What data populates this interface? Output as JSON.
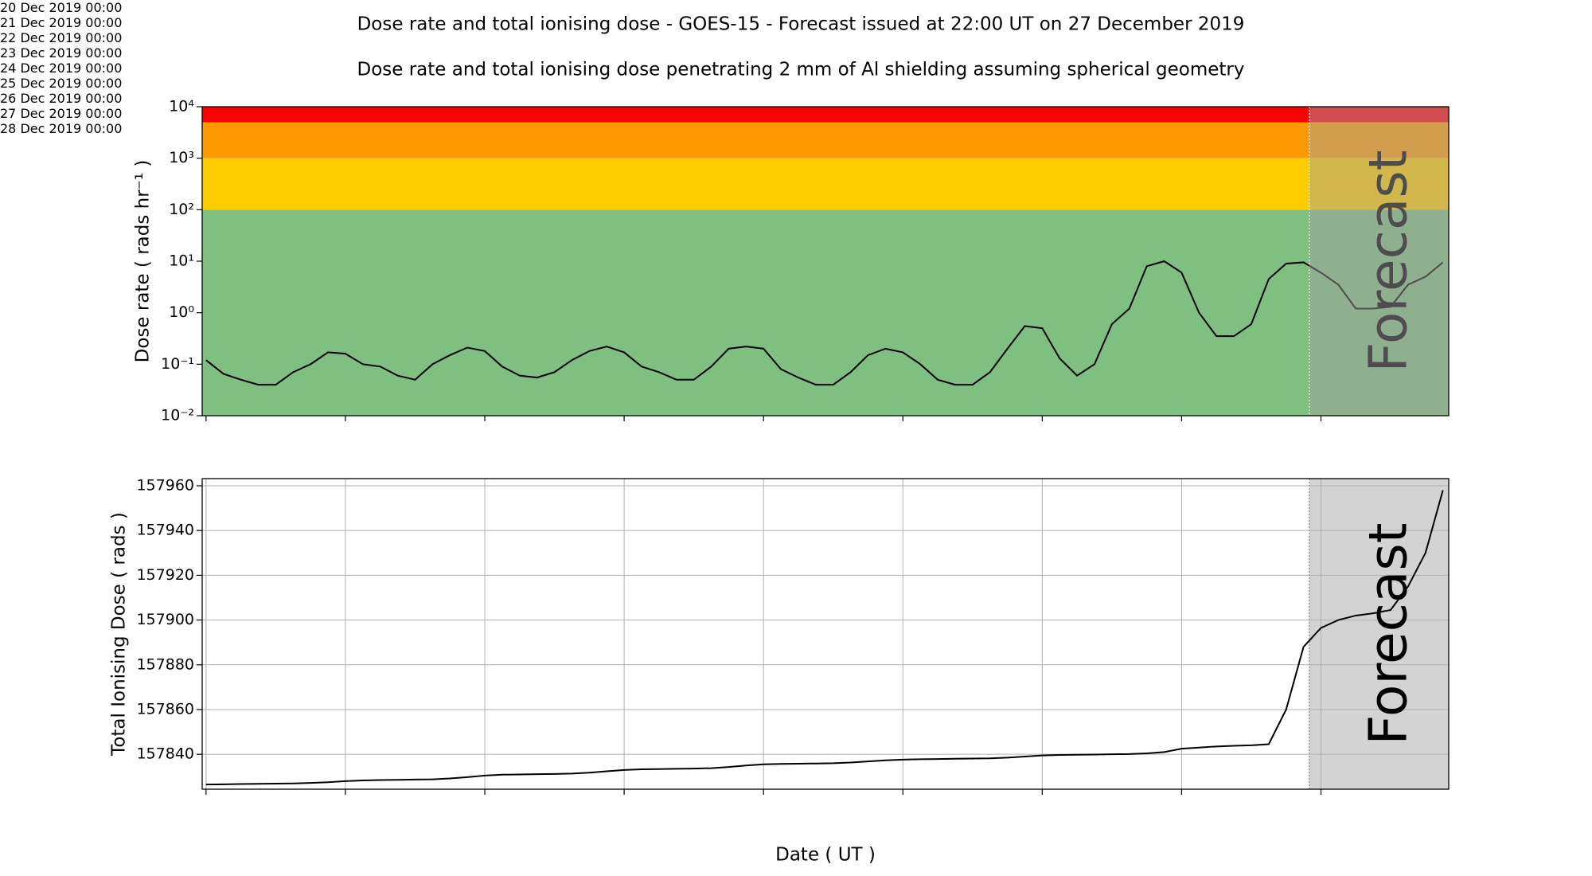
{
  "chart_data": [
    {
      "type": "line",
      "title": "Dose rate and total ionising dose - GOES-15 - Forecast issued at 22:00 UT on 27 December 2019",
      "subtitle": "Dose rate and total ionising dose penetrating 2 mm of Al shielding assuming spherical geometry",
      "ylabel": "Dose rate ( rads hr⁻¹ )",
      "yscale": "log",
      "xlim": [
        "2019-12-19T23:20",
        "2019-12-28T22:00"
      ],
      "xticks": [
        "2019-12-20T00:00",
        "2019-12-21T00:00",
        "2019-12-22T00:00",
        "2019-12-23T00:00",
        "2019-12-24T00:00",
        "2019-12-25T00:00",
        "2019-12-26T00:00",
        "2019-12-27T00:00",
        "2019-12-28T00:00"
      ],
      "ylim": [
        0.01,
        10000
      ],
      "yticks": [
        {
          "value": 0.01,
          "label": "10⁻²"
        },
        {
          "value": 0.1,
          "label": "10⁻¹"
        },
        {
          "value": 1,
          "label": "10⁰"
        },
        {
          "value": 10,
          "label": "10¹"
        },
        {
          "value": 100,
          "label": "10²"
        },
        {
          "value": 1000,
          "label": "10³"
        },
        {
          "value": 10000,
          "label": "10⁴"
        }
      ],
      "grid": false,
      "bands": [
        {
          "from": 0.01,
          "to": 100,
          "color": "#7fbf7f"
        },
        {
          "from": 100,
          "to": 1000,
          "color": "#ffcc00"
        },
        {
          "from": 1000,
          "to": 5000,
          "color": "#ff9900"
        },
        {
          "from": 5000,
          "to": 10000,
          "color": "#ff0000"
        }
      ],
      "forecast": {
        "start": "2019-12-27T22:00",
        "label": "Forecast",
        "color": "rgba(160,160,160,0.48)",
        "line_color": "#ffffff"
      },
      "color": "#000000",
      "x": [
        "2019-12-20T00:00",
        "2019-12-20T03:00",
        "2019-12-20T06:00",
        "2019-12-20T09:00",
        "2019-12-20T12:00",
        "2019-12-20T15:00",
        "2019-12-20T18:00",
        "2019-12-20T21:00",
        "2019-12-21T00:00",
        "2019-12-21T03:00",
        "2019-12-21T06:00",
        "2019-12-21T09:00",
        "2019-12-21T12:00",
        "2019-12-21T15:00",
        "2019-12-21T18:00",
        "2019-12-21T21:00",
        "2019-12-22T00:00",
        "2019-12-22T03:00",
        "2019-12-22T06:00",
        "2019-12-22T09:00",
        "2019-12-22T12:00",
        "2019-12-22T15:00",
        "2019-12-22T18:00",
        "2019-12-22T21:00",
        "2019-12-23T00:00",
        "2019-12-23T03:00",
        "2019-12-23T06:00",
        "2019-12-23T09:00",
        "2019-12-23T12:00",
        "2019-12-23T15:00",
        "2019-12-23T18:00",
        "2019-12-23T21:00",
        "2019-12-24T00:00",
        "2019-12-24T03:00",
        "2019-12-24T06:00",
        "2019-12-24T09:00",
        "2019-12-24T12:00",
        "2019-12-24T15:00",
        "2019-12-24T18:00",
        "2019-12-24T21:00",
        "2019-12-25T00:00",
        "2019-12-25T03:00",
        "2019-12-25T06:00",
        "2019-12-25T09:00",
        "2019-12-25T12:00",
        "2019-12-25T15:00",
        "2019-12-25T18:00",
        "2019-12-25T21:00",
        "2019-12-26T00:00",
        "2019-12-26T03:00",
        "2019-12-26T06:00",
        "2019-12-26T09:00",
        "2019-12-26T12:00",
        "2019-12-26T15:00",
        "2019-12-26T18:00",
        "2019-12-26T21:00",
        "2019-12-27T00:00",
        "2019-12-27T03:00",
        "2019-12-27T06:00",
        "2019-12-27T09:00",
        "2019-12-27T12:00",
        "2019-12-27T15:00",
        "2019-12-27T18:00",
        "2019-12-27T21:00",
        "2019-12-28T00:00",
        "2019-12-28T03:00",
        "2019-12-28T06:00",
        "2019-12-28T09:00",
        "2019-12-28T12:00",
        "2019-12-28T15:00",
        "2019-12-28T18:00",
        "2019-12-28T21:00"
      ],
      "values": [
        0.12,
        0.065,
        0.05,
        0.04,
        0.04,
        0.07,
        0.1,
        0.17,
        0.16,
        0.1,
        0.09,
        0.06,
        0.05,
        0.1,
        0.15,
        0.21,
        0.18,
        0.09,
        0.06,
        0.055,
        0.07,
        0.12,
        0.18,
        0.22,
        0.17,
        0.09,
        0.07,
        0.05,
        0.05,
        0.09,
        0.2,
        0.22,
        0.2,
        0.08,
        0.055,
        0.04,
        0.04,
        0.07,
        0.15,
        0.2,
        0.17,
        0.1,
        0.05,
        0.04,
        0.04,
        0.07,
        0.2,
        0.55,
        0.5,
        0.13,
        0.06,
        0.1,
        0.6,
        1.2,
        8,
        10,
        6,
        1.0,
        0.35,
        0.35,
        0.6,
        4.5,
        9,
        9.5,
        6,
        3.5,
        1.2,
        1.2,
        1.3,
        3.5,
        5,
        9.5
      ]
    },
    {
      "type": "line",
      "ylabel": "Total Ionising Dose ( rads )",
      "xlabel": "Date ( UT )",
      "yscale": "linear",
      "xlim": [
        "2019-12-19T23:20",
        "2019-12-28T22:00"
      ],
      "xticks": [
        {
          "value": "2019-12-20T00:00",
          "label": "20 Dec\n2019\n00:00"
        },
        {
          "value": "2019-12-21T00:00",
          "label": "21 Dec\n2019\n00:00"
        },
        {
          "value": "2019-12-22T00:00",
          "label": "22 Dec\n2019\n00:00"
        },
        {
          "value": "2019-12-23T00:00",
          "label": "23 Dec\n2019\n00:00"
        },
        {
          "value": "2019-12-24T00:00",
          "label": "24 Dec\n2019\n00:00"
        },
        {
          "value": "2019-12-25T00:00",
          "label": "25 Dec\n2019\n00:00"
        },
        {
          "value": "2019-12-26T00:00",
          "label": "26 Dec\n2019\n00:00"
        },
        {
          "value": "2019-12-27T00:00",
          "label": "27 Dec\n2019\n00:00"
        },
        {
          "value": "2019-12-28T00:00",
          "label": "28 Dec\n2019\n00:00"
        }
      ],
      "ylim": [
        157824.4,
        157963.2
      ],
      "yticks": [
        157840,
        157860,
        157880,
        157900,
        157920,
        157940,
        157960
      ],
      "grid": true,
      "forecast": {
        "start": "2019-12-27T22:00",
        "label": "Forecast",
        "color": "#d3d3d3",
        "line_color": "#999999"
      },
      "color": "#000000",
      "x": [
        "2019-12-20T00:00",
        "2019-12-20T03:00",
        "2019-12-20T06:00",
        "2019-12-20T09:00",
        "2019-12-20T12:00",
        "2019-12-20T15:00",
        "2019-12-20T18:00",
        "2019-12-20T21:00",
        "2019-12-21T00:00",
        "2019-12-21T03:00",
        "2019-12-21T06:00",
        "2019-12-21T09:00",
        "2019-12-21T12:00",
        "2019-12-21T15:00",
        "2019-12-21T18:00",
        "2019-12-21T21:00",
        "2019-12-22T00:00",
        "2019-12-22T03:00",
        "2019-12-22T06:00",
        "2019-12-22T09:00",
        "2019-12-22T12:00",
        "2019-12-22T15:00",
        "2019-12-22T18:00",
        "2019-12-22T21:00",
        "2019-12-23T00:00",
        "2019-12-23T03:00",
        "2019-12-23T06:00",
        "2019-12-23T09:00",
        "2019-12-23T12:00",
        "2019-12-23T15:00",
        "2019-12-23T18:00",
        "2019-12-23T21:00",
        "2019-12-24T00:00",
        "2019-12-24T03:00",
        "2019-12-24T06:00",
        "2019-12-24T09:00",
        "2019-12-24T12:00",
        "2019-12-24T15:00",
        "2019-12-24T18:00",
        "2019-12-24T21:00",
        "2019-12-25T00:00",
        "2019-12-25T03:00",
        "2019-12-25T06:00",
        "2019-12-25T09:00",
        "2019-12-25T12:00",
        "2019-12-25T15:00",
        "2019-12-25T18:00",
        "2019-12-25T21:00",
        "2019-12-26T00:00",
        "2019-12-26T03:00",
        "2019-12-26T06:00",
        "2019-12-26T09:00",
        "2019-12-26T12:00",
        "2019-12-26T15:00",
        "2019-12-26T18:00",
        "2019-12-26T21:00",
        "2019-12-27T00:00",
        "2019-12-27T03:00",
        "2019-12-27T06:00",
        "2019-12-27T09:00",
        "2019-12-27T12:00",
        "2019-12-27T15:00",
        "2019-12-27T18:00",
        "2019-12-27T21:00",
        "2019-12-28T00:00",
        "2019-12-28T03:00",
        "2019-12-28T06:00",
        "2019-12-28T09:00",
        "2019-12-28T12:00",
        "2019-12-28T15:00",
        "2019-12-28T18:00",
        "2019-12-28T21:00"
      ],
      "values": [
        157826.5,
        157826.6,
        157826.7,
        157826.8,
        157826.9,
        157827.0,
        157827.2,
        157827.5,
        157828.0,
        157828.3,
        157828.5,
        157828.6,
        157828.7,
        157828.8,
        157829.2,
        157829.8,
        157830.5,
        157830.9,
        157831.0,
        157831.1,
        157831.2,
        157831.4,
        157831.8,
        157832.4,
        157833.0,
        157833.3,
        157833.4,
        157833.5,
        157833.6,
        157833.8,
        157834.3,
        157835.0,
        157835.5,
        157835.7,
        157835.8,
        157835.9,
        157836.0,
        157836.3,
        157836.8,
        157837.3,
        157837.6,
        157837.8,
        157837.9,
        157838.0,
        157838.1,
        157838.2,
        157838.5,
        157839.0,
        157839.5,
        157839.7,
        157839.8,
        157839.9,
        157840.0,
        157840.1,
        157840.4,
        157841.0,
        157842.5,
        157843.0,
        157843.5,
        157843.8,
        157844.0,
        157844.5,
        157860.0,
        157888.0,
        157896.5,
        157900.0,
        157902.0,
        157903.0,
        157904.5,
        157915.0,
        157930.0,
        157958.0
      ]
    }
  ]
}
